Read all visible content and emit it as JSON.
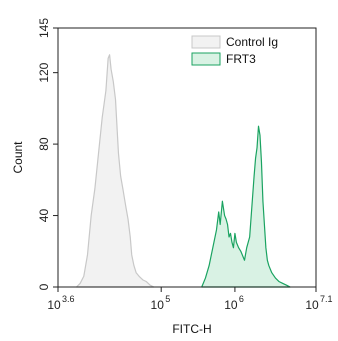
{
  "chart_data": {
    "type": "area",
    "xlabel": "FITC-H",
    "ylabel": "Count",
    "x_scale": "log10",
    "xlim": [
      3.6,
      7.1
    ],
    "ylim": [
      0,
      145
    ],
    "x_ticks": [
      {
        "value": 3.6,
        "base": "10",
        "exp": "3.6"
      },
      {
        "value": 5,
        "base": "10",
        "exp": "5"
      },
      {
        "value": 6,
        "base": "10",
        "exp": "6"
      },
      {
        "value": 7.1,
        "base": "10",
        "exp": "7.1"
      }
    ],
    "y_ticks": [
      "0",
      "40",
      "80",
      "120",
      "145"
    ],
    "y_tick_values": [
      0,
      40,
      80,
      120,
      145
    ],
    "legend_placement": "top-right",
    "grid": false,
    "series": [
      {
        "name": "Control Ig",
        "color": "#c8c8c8",
        "fill": "#f2f2f2",
        "x": [
          3.85,
          3.9,
          3.95,
          4.0,
          4.05,
          4.1,
          4.15,
          4.2,
          4.25,
          4.28,
          4.3,
          4.32,
          4.35,
          4.38,
          4.4,
          4.42,
          4.45,
          4.48,
          4.5,
          4.52,
          4.55,
          4.58,
          4.6,
          4.63,
          4.66,
          4.7,
          4.75,
          4.8,
          4.85,
          4.9
        ],
        "y": [
          0,
          2,
          6,
          18,
          40,
          55,
          75,
          95,
          110,
          128,
          130,
          122,
          115,
          105,
          90,
          75,
          62,
          55,
          50,
          45,
          38,
          28,
          18,
          12,
          8,
          6,
          4,
          3,
          1,
          0
        ]
      },
      {
        "name": "FRT3",
        "color": "#1aa361",
        "fill": "#d9f2e4",
        "x": [
          5.55,
          5.6,
          5.65,
          5.7,
          5.75,
          5.78,
          5.8,
          5.83,
          5.86,
          5.88,
          5.9,
          5.92,
          5.94,
          5.96,
          5.98,
          6.0,
          6.02,
          6.05,
          6.08,
          6.1,
          6.13,
          6.16,
          6.2,
          6.23,
          6.26,
          6.28,
          6.3,
          6.32,
          6.34,
          6.36,
          6.38,
          6.4,
          6.42,
          6.44,
          6.46,
          6.5,
          6.55,
          6.6,
          6.65,
          6.7,
          6.75
        ],
        "y": [
          0,
          5,
          12,
          22,
          32,
          42,
          35,
          48,
          40,
          38,
          35,
          28,
          30,
          25,
          22,
          30,
          25,
          22,
          20,
          18,
          15,
          22,
          28,
          45,
          62,
          72,
          78,
          90,
          85,
          70,
          48,
          35,
          22,
          15,
          12,
          8,
          5,
          3,
          2,
          1,
          0
        ]
      }
    ]
  }
}
